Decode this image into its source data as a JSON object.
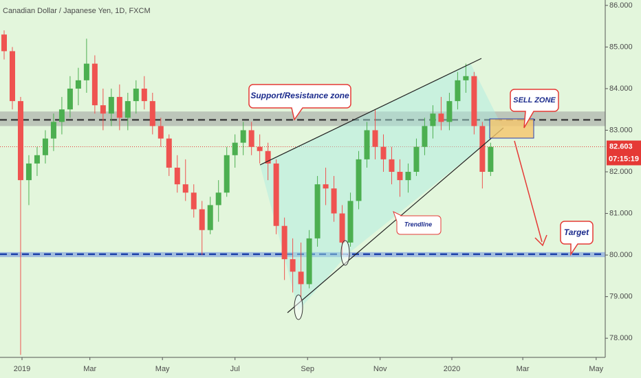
{
  "chart_data": {
    "type": "candlestick",
    "title": "Canadian Dollar / Japanese Yen, 1D, FXCM",
    "x": [
      0.5,
      1.5,
      2.5,
      3.5,
      4.5,
      5.5,
      6.5,
      7.5,
      8.5,
      9.5,
      10.5,
      11.5,
      12.5,
      13.5,
      14.5,
      15.5,
      16.5,
      17.5,
      18.5,
      19.5,
      20.5,
      21.5,
      22.5,
      23.5,
      24.5,
      25.5,
      26.5,
      27.5,
      28.5,
      29.5,
      30.5,
      31.5,
      32.5,
      33.5,
      34.5,
      35.5,
      36.5,
      37.5,
      38.5,
      39.5,
      40.5,
      41.5,
      42.5,
      43.5,
      44.5,
      45.5,
      46.5,
      47.5,
      48.5,
      49.5,
      50.5,
      51.5,
      52.5,
      53.5,
      54.5,
      55.5,
      56.5,
      57.5,
      58.5,
      59.5
    ],
    "open": [
      85.3,
      84.9,
      83.7,
      81.8,
      82.2,
      82.4,
      82.8,
      83.2,
      83.5,
      84.0,
      84.2,
      84.6,
      83.6,
      83.4,
      83.8,
      83.3,
      83.7,
      84.0,
      83.7,
      83.1,
      82.8,
      82.1,
      81.7,
      81.5,
      81.1,
      80.6,
      81.2,
      81.5,
      82.4,
      82.7,
      83.0,
      82.6,
      82.5,
      82.2,
      80.7,
      79.9,
      79.6,
      79.3,
      80.4,
      81.7,
      81.6,
      81.0,
      80.3,
      81.3,
      82.3,
      83.0,
      82.6,
      82.3,
      82.0,
      81.8,
      82.0,
      82.6,
      83.1,
      83.4,
      83.2,
      83.7,
      84.2,
      84.3,
      83.1,
      82.0
    ],
    "high": [
      85.4,
      85.0,
      83.8,
      82.4,
      82.6,
      83.0,
      83.4,
      83.8,
      84.3,
      84.5,
      85.2,
      84.8,
      84.0,
      84.0,
      84.1,
      83.9,
      84.2,
      84.3,
      83.9,
      83.3,
      82.9,
      82.4,
      82.3,
      81.7,
      81.3,
      81.4,
      81.8,
      82.6,
      82.9,
      83.2,
      83.2,
      82.9,
      82.7,
      82.3,
      80.9,
      80.4,
      80.3,
      80.6,
      81.9,
      82.1,
      81.9,
      81.2,
      81.5,
      82.5,
      83.2,
      83.5,
      82.9,
      82.6,
      82.3,
      82.2,
      82.8,
      83.3,
      83.6,
      83.8,
      83.9,
      84.4,
      84.6,
      84.4,
      83.2,
      82.7
    ],
    "low": [
      84.7,
      83.5,
      77.6,
      81.2,
      81.9,
      82.2,
      82.5,
      82.9,
      83.3,
      83.6,
      83.9,
      83.4,
      83.0,
      83.1,
      83.0,
      83.0,
      83.4,
      83.5,
      82.9,
      82.6,
      81.9,
      81.5,
      81.3,
      80.9,
      80.0,
      80.5,
      80.8,
      81.4,
      82.1,
      82.4,
      82.4,
      82.2,
      81.8,
      80.5,
      79.4,
      79.1,
      78.9,
      79.2,
      80.2,
      81.2,
      80.8,
      80.0,
      80.2,
      81.1,
      82.1,
      82.3,
      82.0,
      81.7,
      81.4,
      81.5,
      81.9,
      82.4,
      82.8,
      83.0,
      83.0,
      83.5,
      83.9,
      82.9,
      81.6,
      81.9
    ],
    "close": [
      84.9,
      83.7,
      81.8,
      82.2,
      82.4,
      82.8,
      83.2,
      83.5,
      84.0,
      84.2,
      84.6,
      83.6,
      83.4,
      83.8,
      83.3,
      83.7,
      84.0,
      83.7,
      83.1,
      82.8,
      82.1,
      81.7,
      81.5,
      81.1,
      80.6,
      81.2,
      81.5,
      82.4,
      82.7,
      83.0,
      82.6,
      82.5,
      82.2,
      80.7,
      79.9,
      79.6,
      79.3,
      80.4,
      81.7,
      81.6,
      81.0,
      80.3,
      81.3,
      82.3,
      83.0,
      82.6,
      82.3,
      82.0,
      81.8,
      82.0,
      82.6,
      83.1,
      83.4,
      83.2,
      83.7,
      84.2,
      84.3,
      83.1,
      82.0,
      82.6
    ],
    "up_color": "#4caf50",
    "down_color": "#ef5350",
    "xlim": [
      0,
      73.4
    ],
    "xticks": [
      {
        "value": 2.67,
        "label": "2019"
      },
      {
        "value": 10.9,
        "label": "Mar"
      },
      {
        "value": 19.7,
        "label": "May"
      },
      {
        "value": 28.5,
        "label": "Jul"
      },
      {
        "value": 37.3,
        "label": "Sep"
      },
      {
        "value": 46.1,
        "label": "Nov"
      },
      {
        "value": 54.8,
        "label": "2020"
      },
      {
        "value": 63.4,
        "label": "Mar"
      },
      {
        "value": 72.3,
        "label": "May"
      }
    ],
    "ylim": [
      77.54,
      86.13
    ],
    "yticks": [
      {
        "value": 78,
        "label": "78.000"
      },
      {
        "value": 79,
        "label": "79.000"
      },
      {
        "value": 80,
        "label": "80.000"
      },
      {
        "value": 81,
        "label": "81.000"
      },
      {
        "value": 82,
        "label": "82.000"
      },
      {
        "value": 83,
        "label": "83.000"
      },
      {
        "value": 84,
        "label": "84.000"
      },
      {
        "value": 85,
        "label": "85.000"
      },
      {
        "value": 86,
        "label": "86.000"
      }
    ],
    "last_price": 82.603,
    "last_price_color": "#e53935",
    "countdown": "07:15:19",
    "zones": [
      {
        "from": 83.1,
        "to": 83.45,
        "line": 83.25,
        "color": "#9e9e9e",
        "line_color": "#424242"
      },
      {
        "from": 79.95,
        "to": 80.07,
        "line": 80.02,
        "color": "#6f8fe0",
        "line_color": "#1a3fa8"
      }
    ]
  },
  "annotations": [
    "Support/Resistance zone",
    "SELL ZONE",
    "Trendline",
    "Target"
  ]
}
